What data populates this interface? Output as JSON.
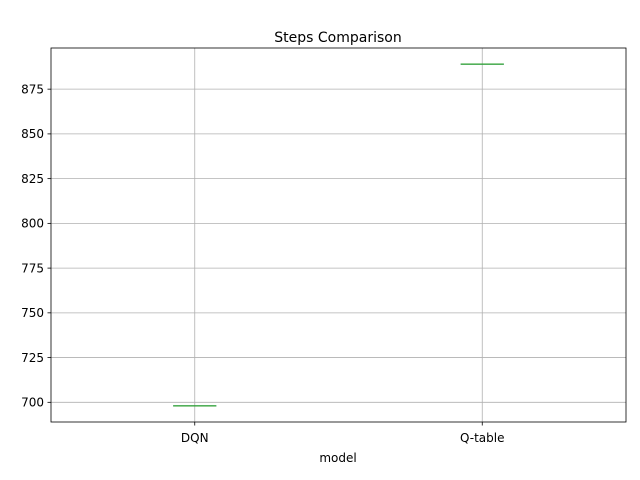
{
  "chart_data": {
    "type": "boxplot",
    "title": "Steps Comparison",
    "xlabel": "model",
    "ylabel": "",
    "categories": [
      "DQN",
      "Q-table"
    ],
    "values": [
      698,
      889
    ],
    "ylim": [
      689,
      898
    ],
    "yticks": [
      700,
      725,
      750,
      775,
      800,
      825,
      850,
      875
    ],
    "ytick_labels": [
      "700",
      "725",
      "750",
      "775",
      "800",
      "825",
      "850",
      "875"
    ],
    "grid": true,
    "median_color": "#2ca02c",
    "box_color": "#1f77b4"
  }
}
